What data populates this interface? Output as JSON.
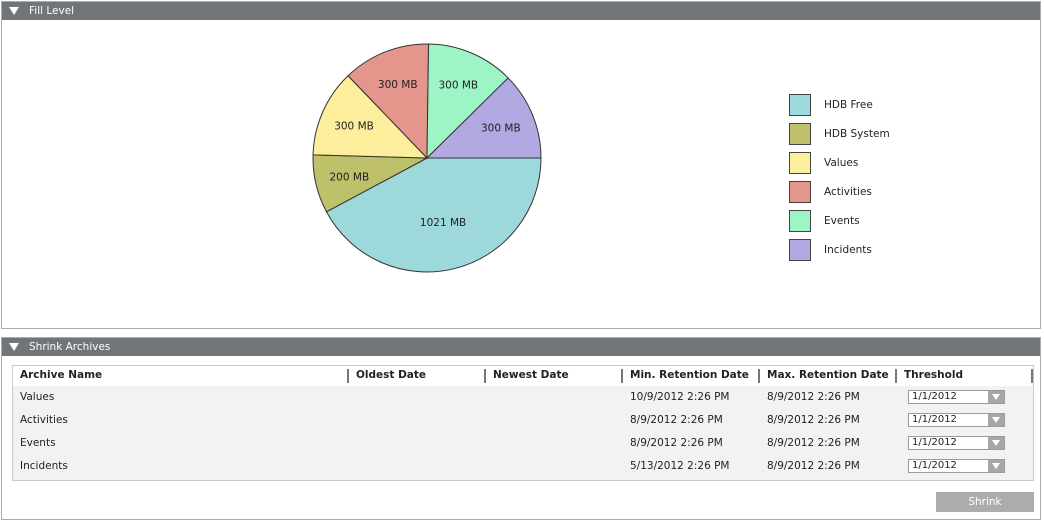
{
  "fill_panel": {
    "title": "Fill Level"
  },
  "chart_data": {
    "type": "pie",
    "title": "",
    "slices": [
      {
        "label": "HDB Free",
        "value": 1021,
        "data_label": "1021 MB",
        "color": "#9dd9db"
      },
      {
        "label": "HDB System",
        "value": 200,
        "data_label": "200 MB",
        "color": "#bfc06a"
      },
      {
        "label": "Values",
        "value": 300,
        "data_label": "300 MB",
        "color": "#fdee9e"
      },
      {
        "label": "Activities",
        "value": 300,
        "data_label": "300 MB",
        "color": "#e4968c"
      },
      {
        "label": "Events",
        "value": 300,
        "data_label": "300 MB",
        "color": "#9df5c6"
      },
      {
        "label": "Incidents",
        "value": 300,
        "data_label": "300 MB",
        "color": "#b2a8e2"
      }
    ],
    "legend_position": "right"
  },
  "shrink_panel": {
    "title": "Shrink Archives",
    "button": "Shrink",
    "columns": [
      "Archive Name",
      "Oldest Date",
      "Newest Date",
      "Min. Retention Date",
      "Max. Retention Date",
      "Threshold"
    ],
    "rows": [
      {
        "name": "Values",
        "oldest": "",
        "newest": "",
        "min": "10/9/2012 2:26 PM",
        "max": "8/9/2012 2:26 PM",
        "threshold": "1/1/2012"
      },
      {
        "name": "Activities",
        "oldest": "",
        "newest": "",
        "min": "8/9/2012 2:26 PM",
        "max": "8/9/2012 2:26 PM",
        "threshold": "1/1/2012"
      },
      {
        "name": "Events",
        "oldest": "",
        "newest": "",
        "min": "8/9/2012 2:26 PM",
        "max": "8/9/2012 2:26 PM",
        "threshold": "1/1/2012"
      },
      {
        "name": "Incidents",
        "oldest": "",
        "newest": "",
        "min": "5/13/2012 2:26 PM",
        "max": "8/9/2012 2:26 PM",
        "threshold": "1/1/2012"
      }
    ]
  }
}
